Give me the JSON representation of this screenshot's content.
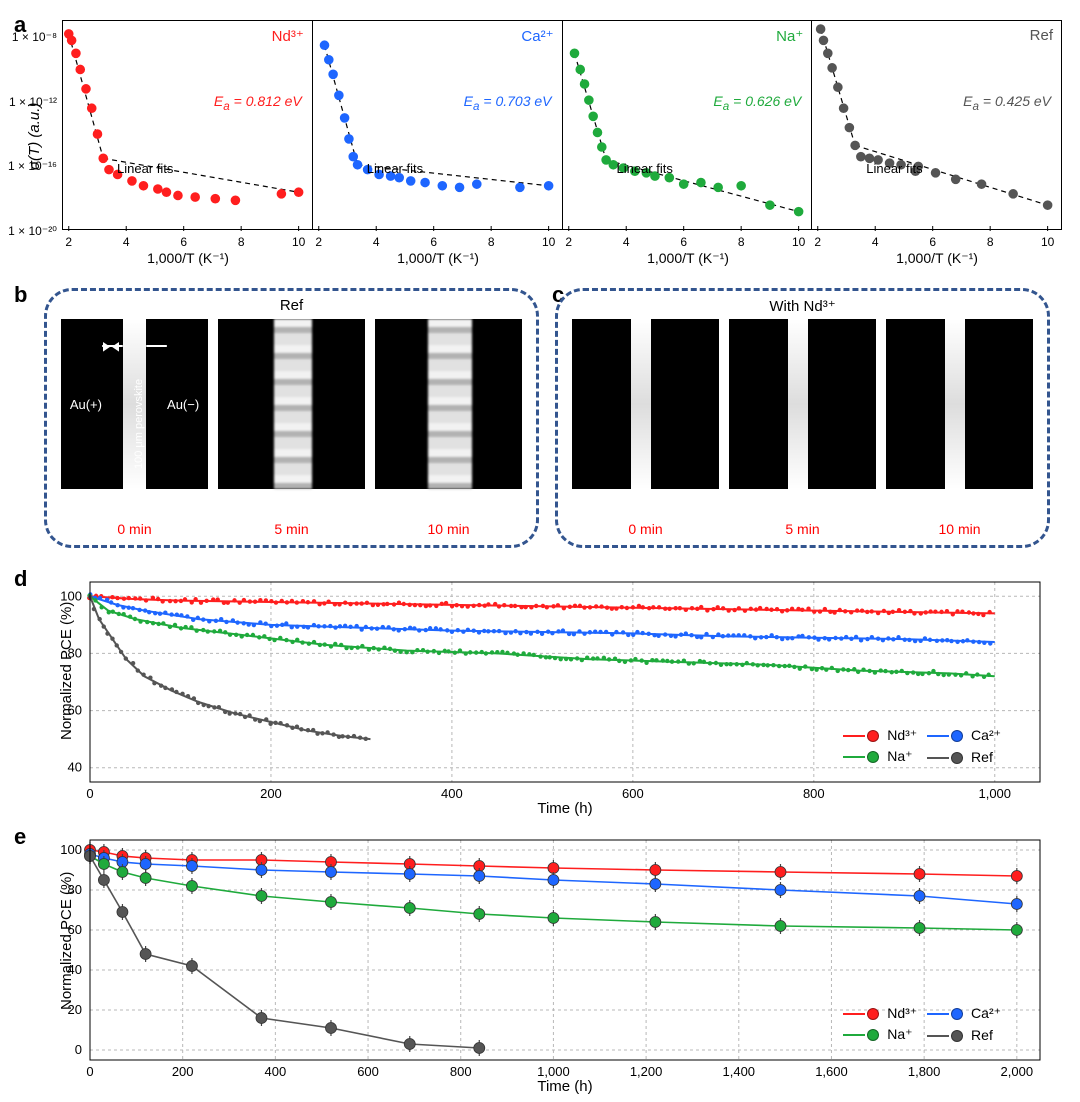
{
  "colors": {
    "nd": "#ff1e1e",
    "ca": "#1e66ff",
    "na": "#1faa3c",
    "ref": "#555555",
    "box_border": "#33558f",
    "grid": "#b8b8b8",
    "bg": "#ffffff",
    "text": "#000000",
    "time_label": "#ff0000",
    "micro_au_text": "#ffffff"
  },
  "panels": {
    "a": {
      "label": "a"
    },
    "b": {
      "label": "b"
    },
    "c": {
      "label": "c"
    },
    "d": {
      "label": "d"
    },
    "e": {
      "label": "e"
    }
  },
  "row_a": {
    "y_label": "σ(T) (a.u.)",
    "x_label": "1,000/T (K⁻¹)",
    "y_ticks": [
      "1 × 10⁻⁸",
      "1 × 10⁻¹²",
      "1 × 10⁻¹⁶",
      "1 × 10⁻²⁰"
    ],
    "y_tick_exp": [
      -8,
      -12,
      -16,
      -20
    ],
    "x_ticks": [
      2,
      4,
      6,
      8,
      10
    ],
    "ylim_exp": [
      -20,
      -7
    ],
    "xlim": [
      1.8,
      10.5
    ],
    "linfit_text": "Linear fits",
    "subplots": [
      {
        "series": "Nd³⁺",
        "color_key": "nd",
        "ea_text": "Eₐ = 0.812 eV",
        "points": [
          [
            2.0,
            -7.8
          ],
          [
            2.1,
            -8.2
          ],
          [
            2.25,
            -9.0
          ],
          [
            2.4,
            -10.0
          ],
          [
            2.6,
            -11.2
          ],
          [
            2.8,
            -12.4
          ],
          [
            3.0,
            -14.0
          ],
          [
            3.2,
            -15.5
          ],
          [
            3.4,
            -16.2
          ],
          [
            3.7,
            -16.5
          ],
          [
            4.2,
            -16.9
          ],
          [
            4.6,
            -17.2
          ],
          [
            5.1,
            -17.4
          ],
          [
            5.4,
            -17.6
          ],
          [
            5.8,
            -17.8
          ],
          [
            6.4,
            -17.9
          ],
          [
            7.1,
            -18.0
          ],
          [
            7.8,
            -18.1
          ],
          [
            9.4,
            -17.7
          ],
          [
            10.0,
            -17.6
          ]
        ]
      },
      {
        "series": "Ca²⁺",
        "color_key": "ca",
        "ea_text": "Eₐ = 0.703 eV",
        "points": [
          [
            2.2,
            -8.5
          ],
          [
            2.35,
            -9.4
          ],
          [
            2.5,
            -10.3
          ],
          [
            2.7,
            -11.6
          ],
          [
            2.9,
            -13.0
          ],
          [
            3.05,
            -14.3
          ],
          [
            3.2,
            -15.4
          ],
          [
            3.35,
            -15.9
          ],
          [
            3.7,
            -16.2
          ],
          [
            4.1,
            -16.5
          ],
          [
            4.5,
            -16.6
          ],
          [
            4.8,
            -16.7
          ],
          [
            5.2,
            -16.9
          ],
          [
            5.7,
            -17.0
          ],
          [
            6.3,
            -17.2
          ],
          [
            6.9,
            -17.3
          ],
          [
            7.5,
            -17.1
          ],
          [
            9.0,
            -17.3
          ],
          [
            10.0,
            -17.2
          ]
        ]
      },
      {
        "series": "Na⁺",
        "color_key": "na",
        "ea_text": "Eₐ = 0.626 eV",
        "points": [
          [
            2.2,
            -9.0
          ],
          [
            2.4,
            -10.0
          ],
          [
            2.55,
            -10.9
          ],
          [
            2.7,
            -11.9
          ],
          [
            2.85,
            -12.9
          ],
          [
            3.0,
            -13.9
          ],
          [
            3.15,
            -14.8
          ],
          [
            3.3,
            -15.6
          ],
          [
            3.55,
            -15.9
          ],
          [
            3.9,
            -16.1
          ],
          [
            4.3,
            -16.3
          ],
          [
            4.7,
            -16.4
          ],
          [
            5.0,
            -16.6
          ],
          [
            5.5,
            -16.7
          ],
          [
            6.0,
            -17.1
          ],
          [
            6.6,
            -17.0
          ],
          [
            7.2,
            -17.3
          ],
          [
            8.0,
            -17.2
          ],
          [
            9.0,
            -18.4
          ],
          [
            10.0,
            -18.8
          ]
        ]
      },
      {
        "series": "Ref",
        "color_key": "ref",
        "ea_text": "Eₐ = 0.425 eV",
        "points": [
          [
            2.1,
            -7.5
          ],
          [
            2.2,
            -8.2
          ],
          [
            2.35,
            -9.0
          ],
          [
            2.5,
            -9.9
          ],
          [
            2.7,
            -11.1
          ],
          [
            2.9,
            -12.4
          ],
          [
            3.1,
            -13.6
          ],
          [
            3.3,
            -14.7
          ],
          [
            3.5,
            -15.4
          ],
          [
            3.8,
            -15.5
          ],
          [
            4.1,
            -15.6
          ],
          [
            4.5,
            -15.8
          ],
          [
            4.9,
            -15.9
          ],
          [
            5.4,
            -16.3
          ],
          [
            5.5,
            -16.0
          ],
          [
            6.1,
            -16.4
          ],
          [
            6.8,
            -16.8
          ],
          [
            7.7,
            -17.1
          ],
          [
            8.8,
            -17.7
          ],
          [
            10.0,
            -18.4
          ]
        ]
      }
    ]
  },
  "row_bc": {
    "b": {
      "title": "Ref",
      "au_plus": "Au(+)",
      "au_minus": "Au(−)",
      "gap_label": "100 μm perovskite",
      "frames": [
        {
          "time": "0 min",
          "strip_left": 42,
          "strip_width": 16,
          "rough": false
        },
        {
          "time": "5 min",
          "strip_left": 38,
          "strip_width": 26,
          "rough": true
        },
        {
          "time": "10 min",
          "strip_left": 36,
          "strip_width": 30,
          "rough": true
        }
      ]
    },
    "c": {
      "title": "With Nd³⁺",
      "frames": [
        {
          "time": "0 min",
          "strip_left": 40,
          "strip_width": 14,
          "rough": false
        },
        {
          "time": "5 min",
          "strip_left": 40,
          "strip_width": 14,
          "rough": false
        },
        {
          "time": "10 min",
          "strip_left": 40,
          "strip_width": 14,
          "rough": false
        }
      ]
    }
  },
  "row_d": {
    "y_label": "Normalized PCE (%)",
    "x_label": "Time (h)",
    "xlim": [
      0,
      1050
    ],
    "ylim": [
      35,
      105
    ],
    "x_ticks": [
      0,
      200,
      400,
      600,
      800,
      1000
    ],
    "y_ticks": [
      40,
      60,
      80,
      100
    ],
    "legend": [
      {
        "key": "nd",
        "label": "Nd³⁺"
      },
      {
        "key": "ca",
        "label": "Ca²⁺"
      },
      {
        "key": "na",
        "label": "Na⁺"
      },
      {
        "key": "ref",
        "label": "Ref"
      }
    ],
    "series": {
      "nd": [
        [
          0,
          100
        ],
        [
          50,
          99
        ],
        [
          100,
          98.5
        ],
        [
          200,
          98
        ],
        [
          300,
          97.5
        ],
        [
          400,
          97
        ],
        [
          500,
          96.5
        ],
        [
          600,
          96
        ],
        [
          700,
          95.5
        ],
        [
          800,
          95
        ],
        [
          900,
          94.5
        ],
        [
          1000,
          94
        ]
      ],
      "ca": [
        [
          0,
          100
        ],
        [
          30,
          97
        ],
        [
          60,
          95
        ],
        [
          120,
          92
        ],
        [
          200,
          90
        ],
        [
          300,
          89
        ],
        [
          400,
          88
        ],
        [
          500,
          87.5
        ],
        [
          600,
          87
        ],
        [
          700,
          86
        ],
        [
          800,
          85.5
        ],
        [
          900,
          85
        ],
        [
          1000,
          84
        ]
      ],
      "na": [
        [
          0,
          100
        ],
        [
          20,
          95
        ],
        [
          50,
          92
        ],
        [
          100,
          89
        ],
        [
          180,
          86
        ],
        [
          260,
          83
        ],
        [
          350,
          81
        ],
        [
          450,
          80
        ],
        [
          550,
          78
        ],
        [
          650,
          77
        ],
        [
          750,
          76
        ],
        [
          850,
          74
        ],
        [
          950,
          73
        ],
        [
          1000,
          72
        ]
      ],
      "ref": [
        [
          0,
          100
        ],
        [
          10,
          92
        ],
        [
          25,
          85
        ],
        [
          40,
          78
        ],
        [
          60,
          72
        ],
        [
          90,
          67
        ],
        [
          120,
          63
        ],
        [
          160,
          59
        ],
        [
          200,
          56
        ],
        [
          240,
          53
        ],
        [
          280,
          51
        ],
        [
          310,
          50
        ]
      ]
    }
  },
  "row_e": {
    "y_label": "Normalized PCE (%)",
    "x_label": "Time (h)",
    "xlim": [
      0,
      2050
    ],
    "ylim": [
      -5,
      105
    ],
    "x_ticks": [
      0,
      200,
      400,
      600,
      800,
      1000,
      1200,
      1400,
      1600,
      1800,
      2000
    ],
    "y_ticks": [
      0,
      20,
      40,
      60,
      80,
      100
    ],
    "error_bar": 4,
    "legend": [
      {
        "key": "nd",
        "label": "Nd³⁺"
      },
      {
        "key": "ca",
        "label": "Ca²⁺"
      },
      {
        "key": "na",
        "label": "Na⁺"
      },
      {
        "key": "ref",
        "label": "Ref"
      }
    ],
    "series": {
      "nd": [
        [
          0,
          100
        ],
        [
          30,
          99
        ],
        [
          70,
          97
        ],
        [
          120,
          96
        ],
        [
          220,
          95
        ],
        [
          370,
          95
        ],
        [
          520,
          94
        ],
        [
          690,
          93
        ],
        [
          840,
          92
        ],
        [
          1000,
          91
        ],
        [
          1220,
          90
        ],
        [
          1490,
          89
        ],
        [
          1790,
          88
        ],
        [
          2000,
          87
        ]
      ],
      "ca": [
        [
          0,
          98
        ],
        [
          30,
          96
        ],
        [
          70,
          94
        ],
        [
          120,
          93
        ],
        [
          220,
          92
        ],
        [
          370,
          90
        ],
        [
          520,
          89
        ],
        [
          690,
          88
        ],
        [
          840,
          87
        ],
        [
          1000,
          85
        ],
        [
          1220,
          83
        ],
        [
          1490,
          80
        ],
        [
          1790,
          77
        ],
        [
          2000,
          73
        ]
      ],
      "na": [
        [
          0,
          97
        ],
        [
          30,
          93
        ],
        [
          70,
          89
        ],
        [
          120,
          86
        ],
        [
          220,
          82
        ],
        [
          370,
          77
        ],
        [
          520,
          74
        ],
        [
          690,
          71
        ],
        [
          840,
          68
        ],
        [
          1000,
          66
        ],
        [
          1220,
          64
        ],
        [
          1490,
          62
        ],
        [
          1790,
          61
        ],
        [
          2000,
          60
        ]
      ],
      "ref": [
        [
          0,
          97
        ],
        [
          30,
          85
        ],
        [
          70,
          69
        ],
        [
          120,
          48
        ],
        [
          220,
          42
        ],
        [
          370,
          16
        ],
        [
          520,
          11
        ],
        [
          690,
          3
        ],
        [
          840,
          1
        ]
      ]
    }
  }
}
